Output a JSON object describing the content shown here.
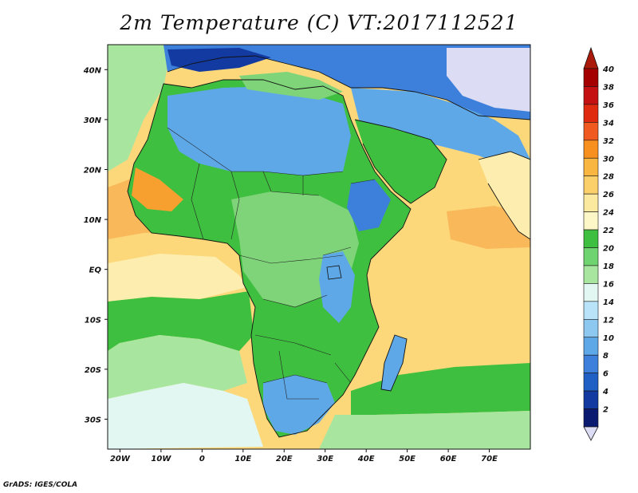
{
  "title": "2m Temperature (C) VT:2017112521",
  "footer": "GrADS: IGES/COLA",
  "map": {
    "lon_range": [
      -23,
      80
    ],
    "lat_range": [
      -36,
      45
    ],
    "lat_ticks": [
      {
        "value": 40,
        "label": "40N"
      },
      {
        "value": 30,
        "label": "30N"
      },
      {
        "value": 20,
        "label": "20N"
      },
      {
        "value": 10,
        "label": "10N"
      },
      {
        "value": 0,
        "label": "EQ"
      },
      {
        "value": -10,
        "label": "10S"
      },
      {
        "value": -20,
        "label": "20S"
      },
      {
        "value": -30,
        "label": "30S"
      }
    ],
    "lon_ticks": [
      {
        "value": -20,
        "label": "20W"
      },
      {
        "value": -10,
        "label": "10W"
      },
      {
        "value": 0,
        "label": "0"
      },
      {
        "value": 10,
        "label": "10E"
      },
      {
        "value": 20,
        "label": "20E"
      },
      {
        "value": 30,
        "label": "30E"
      },
      {
        "value": 40,
        "label": "40E"
      },
      {
        "value": 50,
        "label": "50E"
      },
      {
        "value": 60,
        "label": "60E"
      },
      {
        "value": 70,
        "label": "70E"
      }
    ]
  },
  "colorbar": {
    "labels": [
      "40",
      "38",
      "36",
      "34",
      "32",
      "30",
      "28",
      "26",
      "24",
      "22",
      "20",
      "18",
      "16",
      "14",
      "12",
      "10",
      "8",
      "6",
      "4",
      "2"
    ],
    "colors": [
      "#a50000",
      "#c41010",
      "#e02a10",
      "#f05a20",
      "#f7901f",
      "#f9b640",
      "#fbd06a",
      "#fce9a0",
      "#fdf6c6",
      "#3fbf3f",
      "#6fd46f",
      "#a8e6a0",
      "#e2f7f2",
      "#b8e3f8",
      "#8cc8f0",
      "#5ea8e8",
      "#3d80dc",
      "#2060c4",
      "#123aa0",
      "#0a1a70"
    ],
    "top_color": "#aa1a0a",
    "bottom_color": "#dcdcf4"
  },
  "fields": {
    "ocean_warm": "#fcd87a",
    "ocean_hot": "#f9b85a",
    "ocean_mild": "#fdeeb0",
    "ocean_green": "#3fbf3f",
    "ocean_light_green": "#a8e6a0",
    "ocean_pale": "#e2f7f2",
    "land_green": "#3fbf3f",
    "land_light_green": "#7fd47a",
    "land_blue": "#5ea8e8",
    "land_deep_blue": "#3d80dc",
    "land_dark_blue": "#123aa0",
    "land_lavender": "#dcdcf4",
    "land_orange": "#f7a030"
  }
}
